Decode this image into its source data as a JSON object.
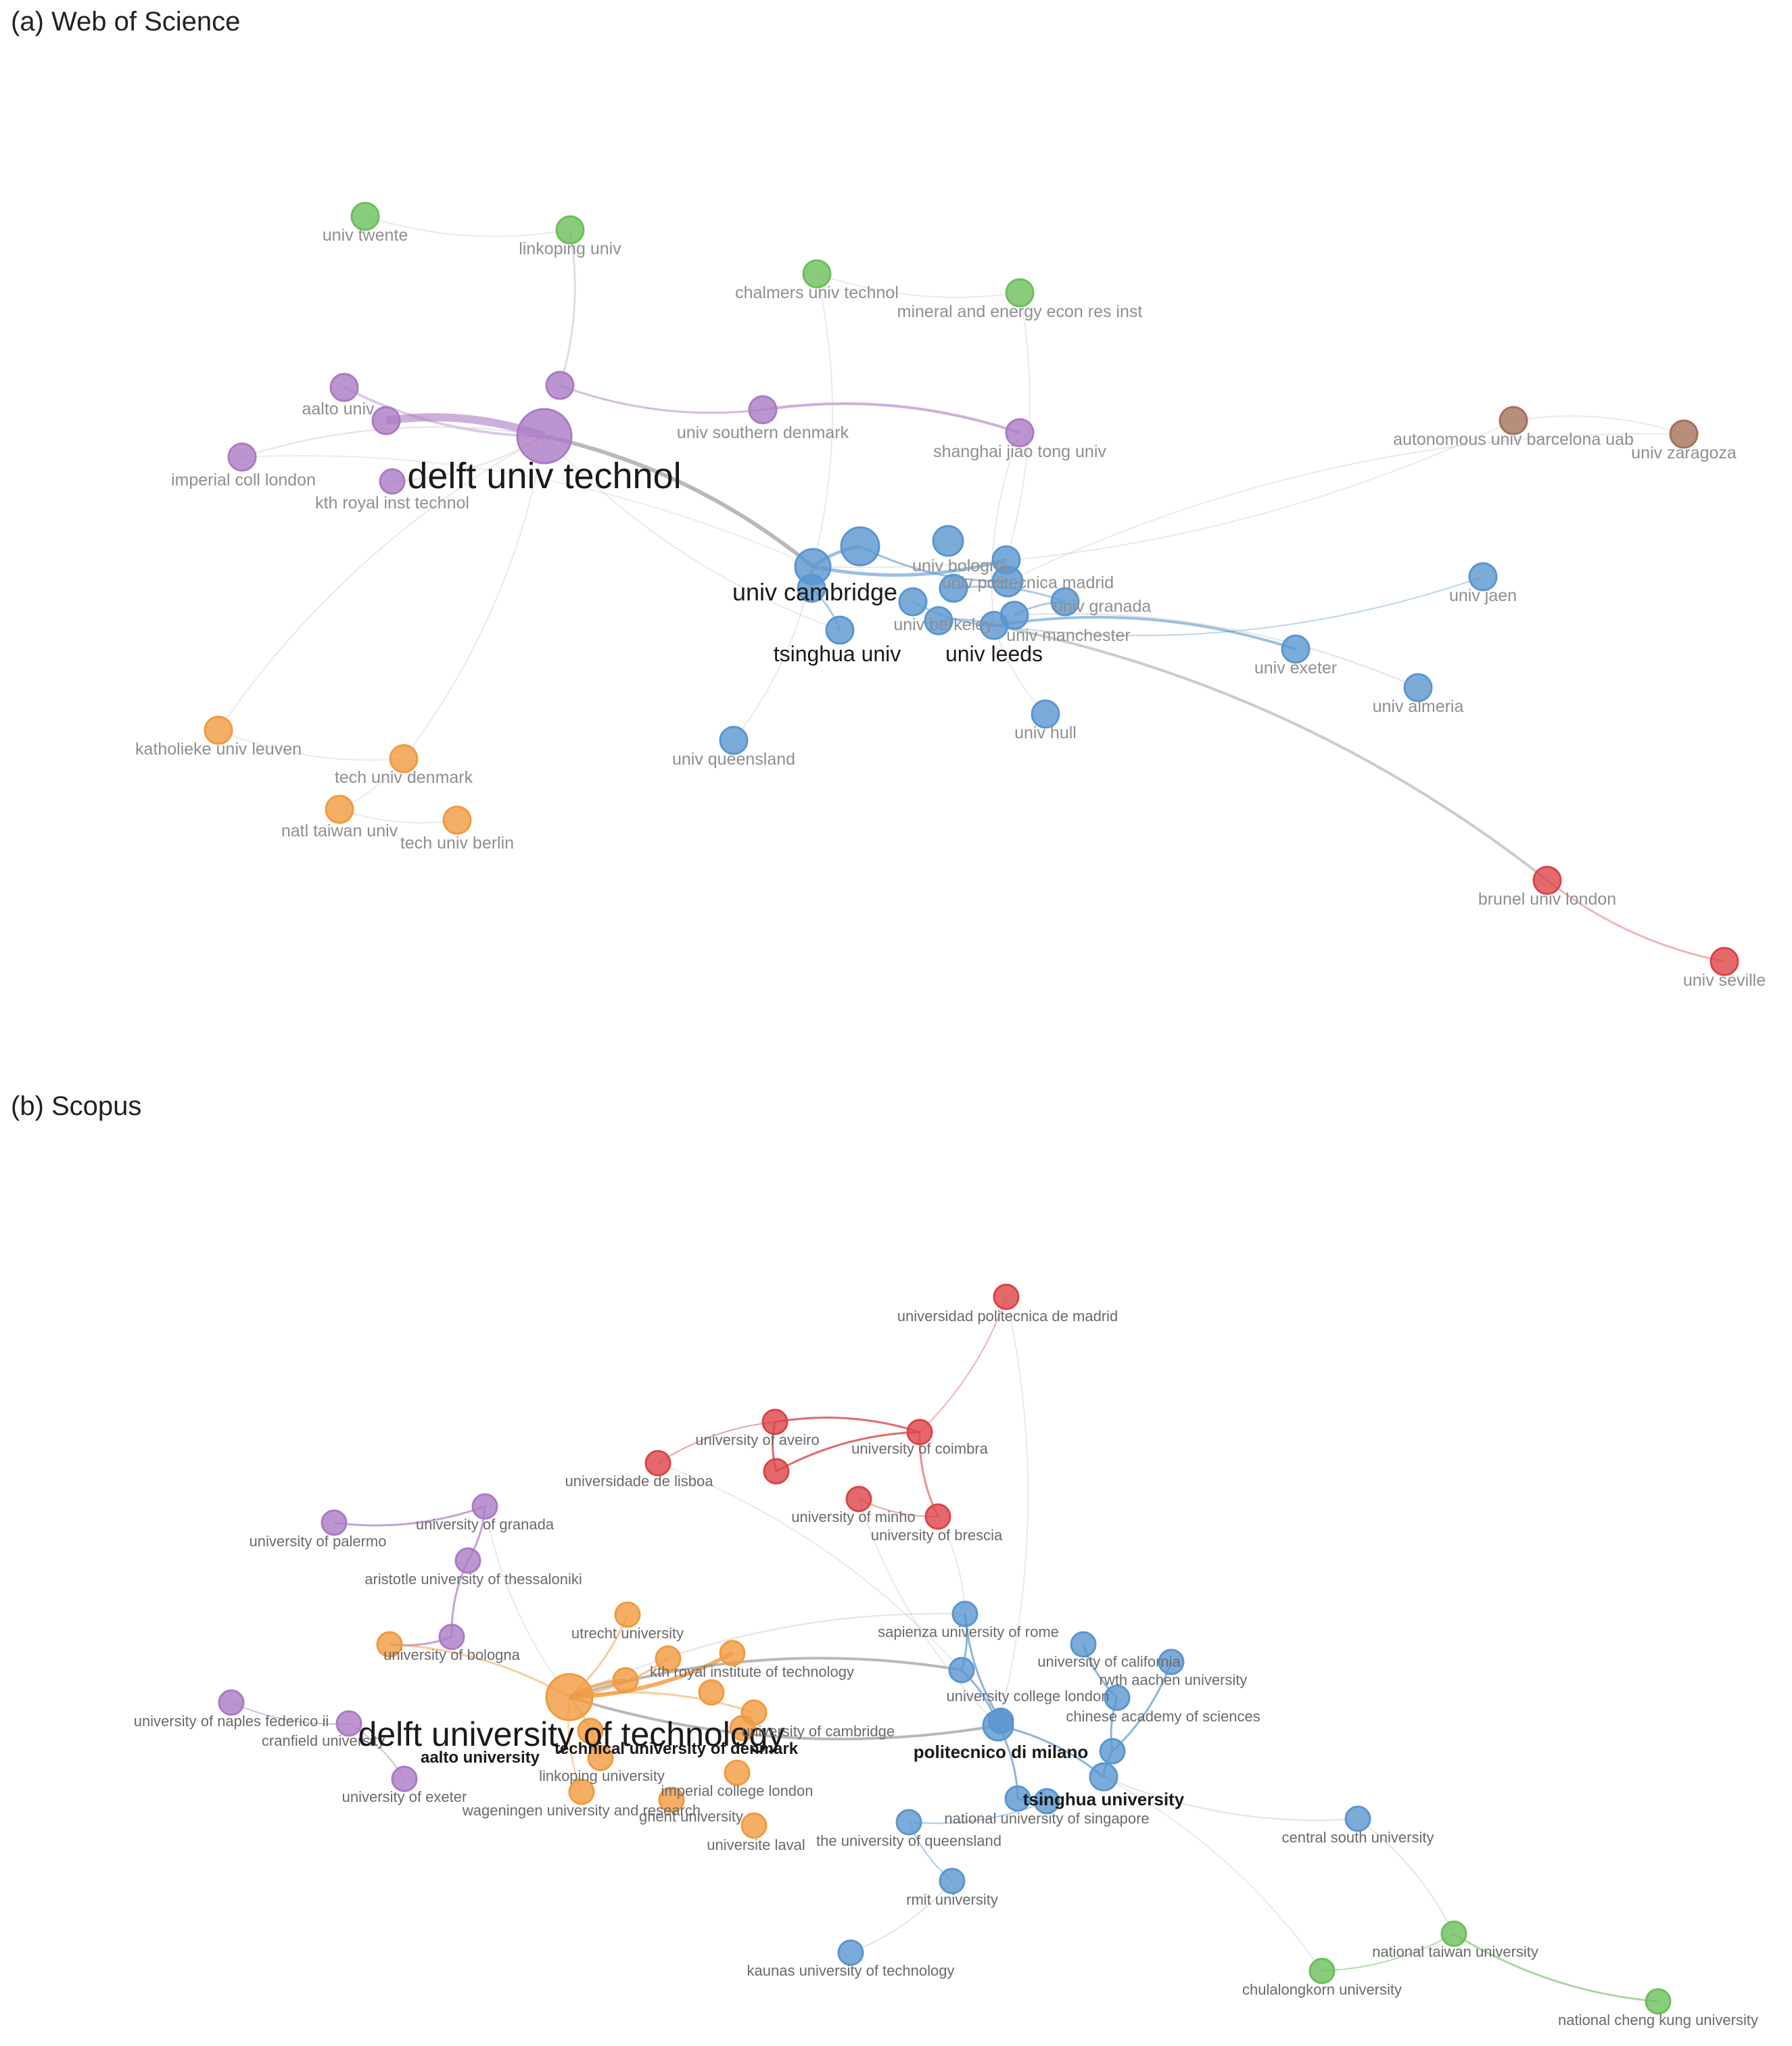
{
  "panels": [
    {
      "title": "(a) Web of Science",
      "nodes": [
        {
          "id": "twente",
          "label": "univ twente",
          "color": "green"
        },
        {
          "id": "linkoping",
          "label": "linkoping univ",
          "color": "green"
        },
        {
          "id": "chalmers",
          "label": "chalmers univ technol",
          "color": "green"
        },
        {
          "id": "mineral",
          "label": "mineral and energy econ res inst",
          "color": "green"
        },
        {
          "id": "aalto",
          "label": "aalto univ",
          "color": "purple"
        },
        {
          "id": "p_small",
          "label": "",
          "color": "purple"
        },
        {
          "id": "p_top",
          "label": "",
          "color": "purple"
        },
        {
          "id": "delft",
          "label": "delft univ technol",
          "color": "purple",
          "prominent": true
        },
        {
          "id": "imperial",
          "label": "imperial coll london",
          "color": "purple"
        },
        {
          "id": "kth",
          "label": "kth royal inst technol",
          "color": "purple"
        },
        {
          "id": "southern_dk",
          "label": "univ southern denmark",
          "color": "purple"
        },
        {
          "id": "shanghai",
          "label": "shanghai jiao tong univ",
          "color": "purple"
        },
        {
          "id": "uab",
          "label": "autonomous univ barcelona uab",
          "color": "brown"
        },
        {
          "id": "zaragoza",
          "label": "univ zaragoza",
          "color": "brown"
        },
        {
          "id": "cambridge",
          "label": "univ cambridge",
          "color": "blue",
          "prominent": true
        },
        {
          "id": "bologna",
          "label": "univ bologna",
          "color": "blue"
        },
        {
          "id": "upm",
          "label": "univ politecnica madrid",
          "color": "blue"
        },
        {
          "id": "granada",
          "label": "univ granada",
          "color": "blue"
        },
        {
          "id": "berkeley",
          "label": "univ berkeley",
          "color": "blue"
        },
        {
          "id": "manchester",
          "label": "univ manchester",
          "color": "blue"
        },
        {
          "id": "tsinghua",
          "label": "tsinghua univ",
          "color": "blue",
          "prominent": true
        },
        {
          "id": "leeds",
          "label": "univ leeds",
          "color": "blue",
          "prominent": true
        },
        {
          "id": "b1",
          "label": "",
          "color": "blue"
        },
        {
          "id": "b2",
          "label": "",
          "color": "blue"
        },
        {
          "id": "b3",
          "label": "",
          "color": "blue"
        },
        {
          "id": "b4",
          "label": "",
          "color": "blue"
        },
        {
          "id": "b5",
          "label": "",
          "color": "blue"
        },
        {
          "id": "jaen",
          "label": "univ jaen",
          "color": "blue"
        },
        {
          "id": "exeter",
          "label": "univ exeter",
          "color": "blue"
        },
        {
          "id": "almeria",
          "label": "univ almeria",
          "color": "blue"
        },
        {
          "id": "hull",
          "label": "univ hull",
          "color": "blue"
        },
        {
          "id": "queensland",
          "label": "univ queensland",
          "color": "blue"
        },
        {
          "id": "leuven",
          "label": "katholieke univ leuven",
          "color": "orange"
        },
        {
          "id": "dtu",
          "label": "tech univ denmark",
          "color": "orange"
        },
        {
          "id": "taiwan",
          "label": "natl taiwan univ",
          "color": "orange"
        },
        {
          "id": "berlin",
          "label": "tech univ berlin",
          "color": "orange"
        },
        {
          "id": "brunel",
          "label": "brunel univ london",
          "color": "red"
        },
        {
          "id": "seville",
          "label": "univ seville",
          "color": "red"
        }
      ]
    },
    {
      "title": "(b) Scopus",
      "nodes": [
        {
          "id": "upm",
          "label": "universidad politecnica de madrid",
          "color": "red"
        },
        {
          "id": "aveiro",
          "label": "university of aveiro",
          "color": "red"
        },
        {
          "id": "coimbra",
          "label": "university of coimbra",
          "color": "red"
        },
        {
          "id": "lisboa",
          "label": "universidade de lisboa",
          "color": "red"
        },
        {
          "id": "r4",
          "label": "",
          "color": "red"
        },
        {
          "id": "minho",
          "label": "university of minho",
          "color": "red"
        },
        {
          "id": "brescia",
          "label": "university of brescia",
          "color": "red"
        },
        {
          "id": "palermo",
          "label": "university of palermo",
          "color": "purple"
        },
        {
          "id": "granada",
          "label": "university of granada",
          "color": "purple"
        },
        {
          "id": "thessaloniki",
          "label": "aristotle university of thessaloniki",
          "color": "purple"
        },
        {
          "id": "bologna",
          "label": "university of bologna",
          "color": "purple"
        },
        {
          "id": "naples",
          "label": "university of naples federico ii",
          "color": "purple"
        },
        {
          "id": "cranfield",
          "label": "cranfield university",
          "color": "purple"
        },
        {
          "id": "exeter",
          "label": "university of exeter",
          "color": "purple"
        },
        {
          "id": "delft",
          "label": "delft university of technology",
          "color": "orange",
          "prominent": true
        },
        {
          "id": "utrecht",
          "label": "utrecht university",
          "color": "orange"
        },
        {
          "id": "kth",
          "label": "kth royal institute of technology",
          "color": "orange"
        },
        {
          "id": "cambridge",
          "label": "university of cambridge",
          "color": "orange"
        },
        {
          "id": "aalto",
          "label": "aalto university",
          "color": "orange",
          "bold": true
        },
        {
          "id": "dtu",
          "label": "technical university of denmark",
          "color": "orange",
          "bold": true
        },
        {
          "id": "linkoping",
          "label": "linkoping university",
          "color": "orange"
        },
        {
          "id": "ucl",
          "label": "imperial college london",
          "color": "orange"
        },
        {
          "id": "wageningen",
          "label": "wageningen university and research",
          "color": "orange"
        },
        {
          "id": "ghent",
          "label": "ghent university",
          "color": "orange"
        },
        {
          "id": "laval",
          "label": "universite laval",
          "color": "orange"
        },
        {
          "id": "o1",
          "label": "",
          "color": "orange"
        },
        {
          "id": "o2",
          "label": "",
          "color": "orange"
        },
        {
          "id": "o3",
          "label": "",
          "color": "orange"
        },
        {
          "id": "o4",
          "label": "",
          "color": "orange"
        },
        {
          "id": "sapienza",
          "label": "sapienza university of rome",
          "color": "blue"
        },
        {
          "id": "california",
          "label": "university of california",
          "color": "blue"
        },
        {
          "id": "rwth",
          "label": "rwth aachen university",
          "color": "blue"
        },
        {
          "id": "ucl2",
          "label": "university college london",
          "color": "blue"
        },
        {
          "id": "cas",
          "label": "chinese academy of sciences",
          "color": "blue"
        },
        {
          "id": "polimi",
          "label": "politecnico di milano",
          "color": "blue",
          "bold": true
        },
        {
          "id": "tsinghua",
          "label": "tsinghua university",
          "color": "blue",
          "bold": true
        },
        {
          "id": "nus",
          "label": "national university of singapore",
          "color": "blue"
        },
        {
          "id": "uq",
          "label": "the university of queensland",
          "color": "blue"
        },
        {
          "id": "rmit",
          "label": "rmit university",
          "color": "blue"
        },
        {
          "id": "kaunas",
          "label": "kaunas university of technology",
          "color": "blue"
        },
        {
          "id": "central_south",
          "label": "central south university",
          "color": "blue"
        },
        {
          "id": "b1",
          "label": "",
          "color": "blue"
        },
        {
          "id": "b2",
          "label": "",
          "color": "blue"
        },
        {
          "id": "b3",
          "label": "",
          "color": "blue"
        },
        {
          "id": "ntu",
          "label": "national taiwan university",
          "color": "green"
        },
        {
          "id": "chula",
          "label": "chulalongkorn university",
          "color": "green"
        },
        {
          "id": "ncku",
          "label": "national cheng kung university",
          "color": "green"
        }
      ]
    }
  ],
  "colors": {
    "green": "#6cbf5a",
    "purple": "#ab7ac4",
    "brown": "#a5705a",
    "blue": "#5a96cf",
    "orange": "#f19a3f",
    "red": "#dc4348",
    "edge": "#c8c8c8"
  }
}
